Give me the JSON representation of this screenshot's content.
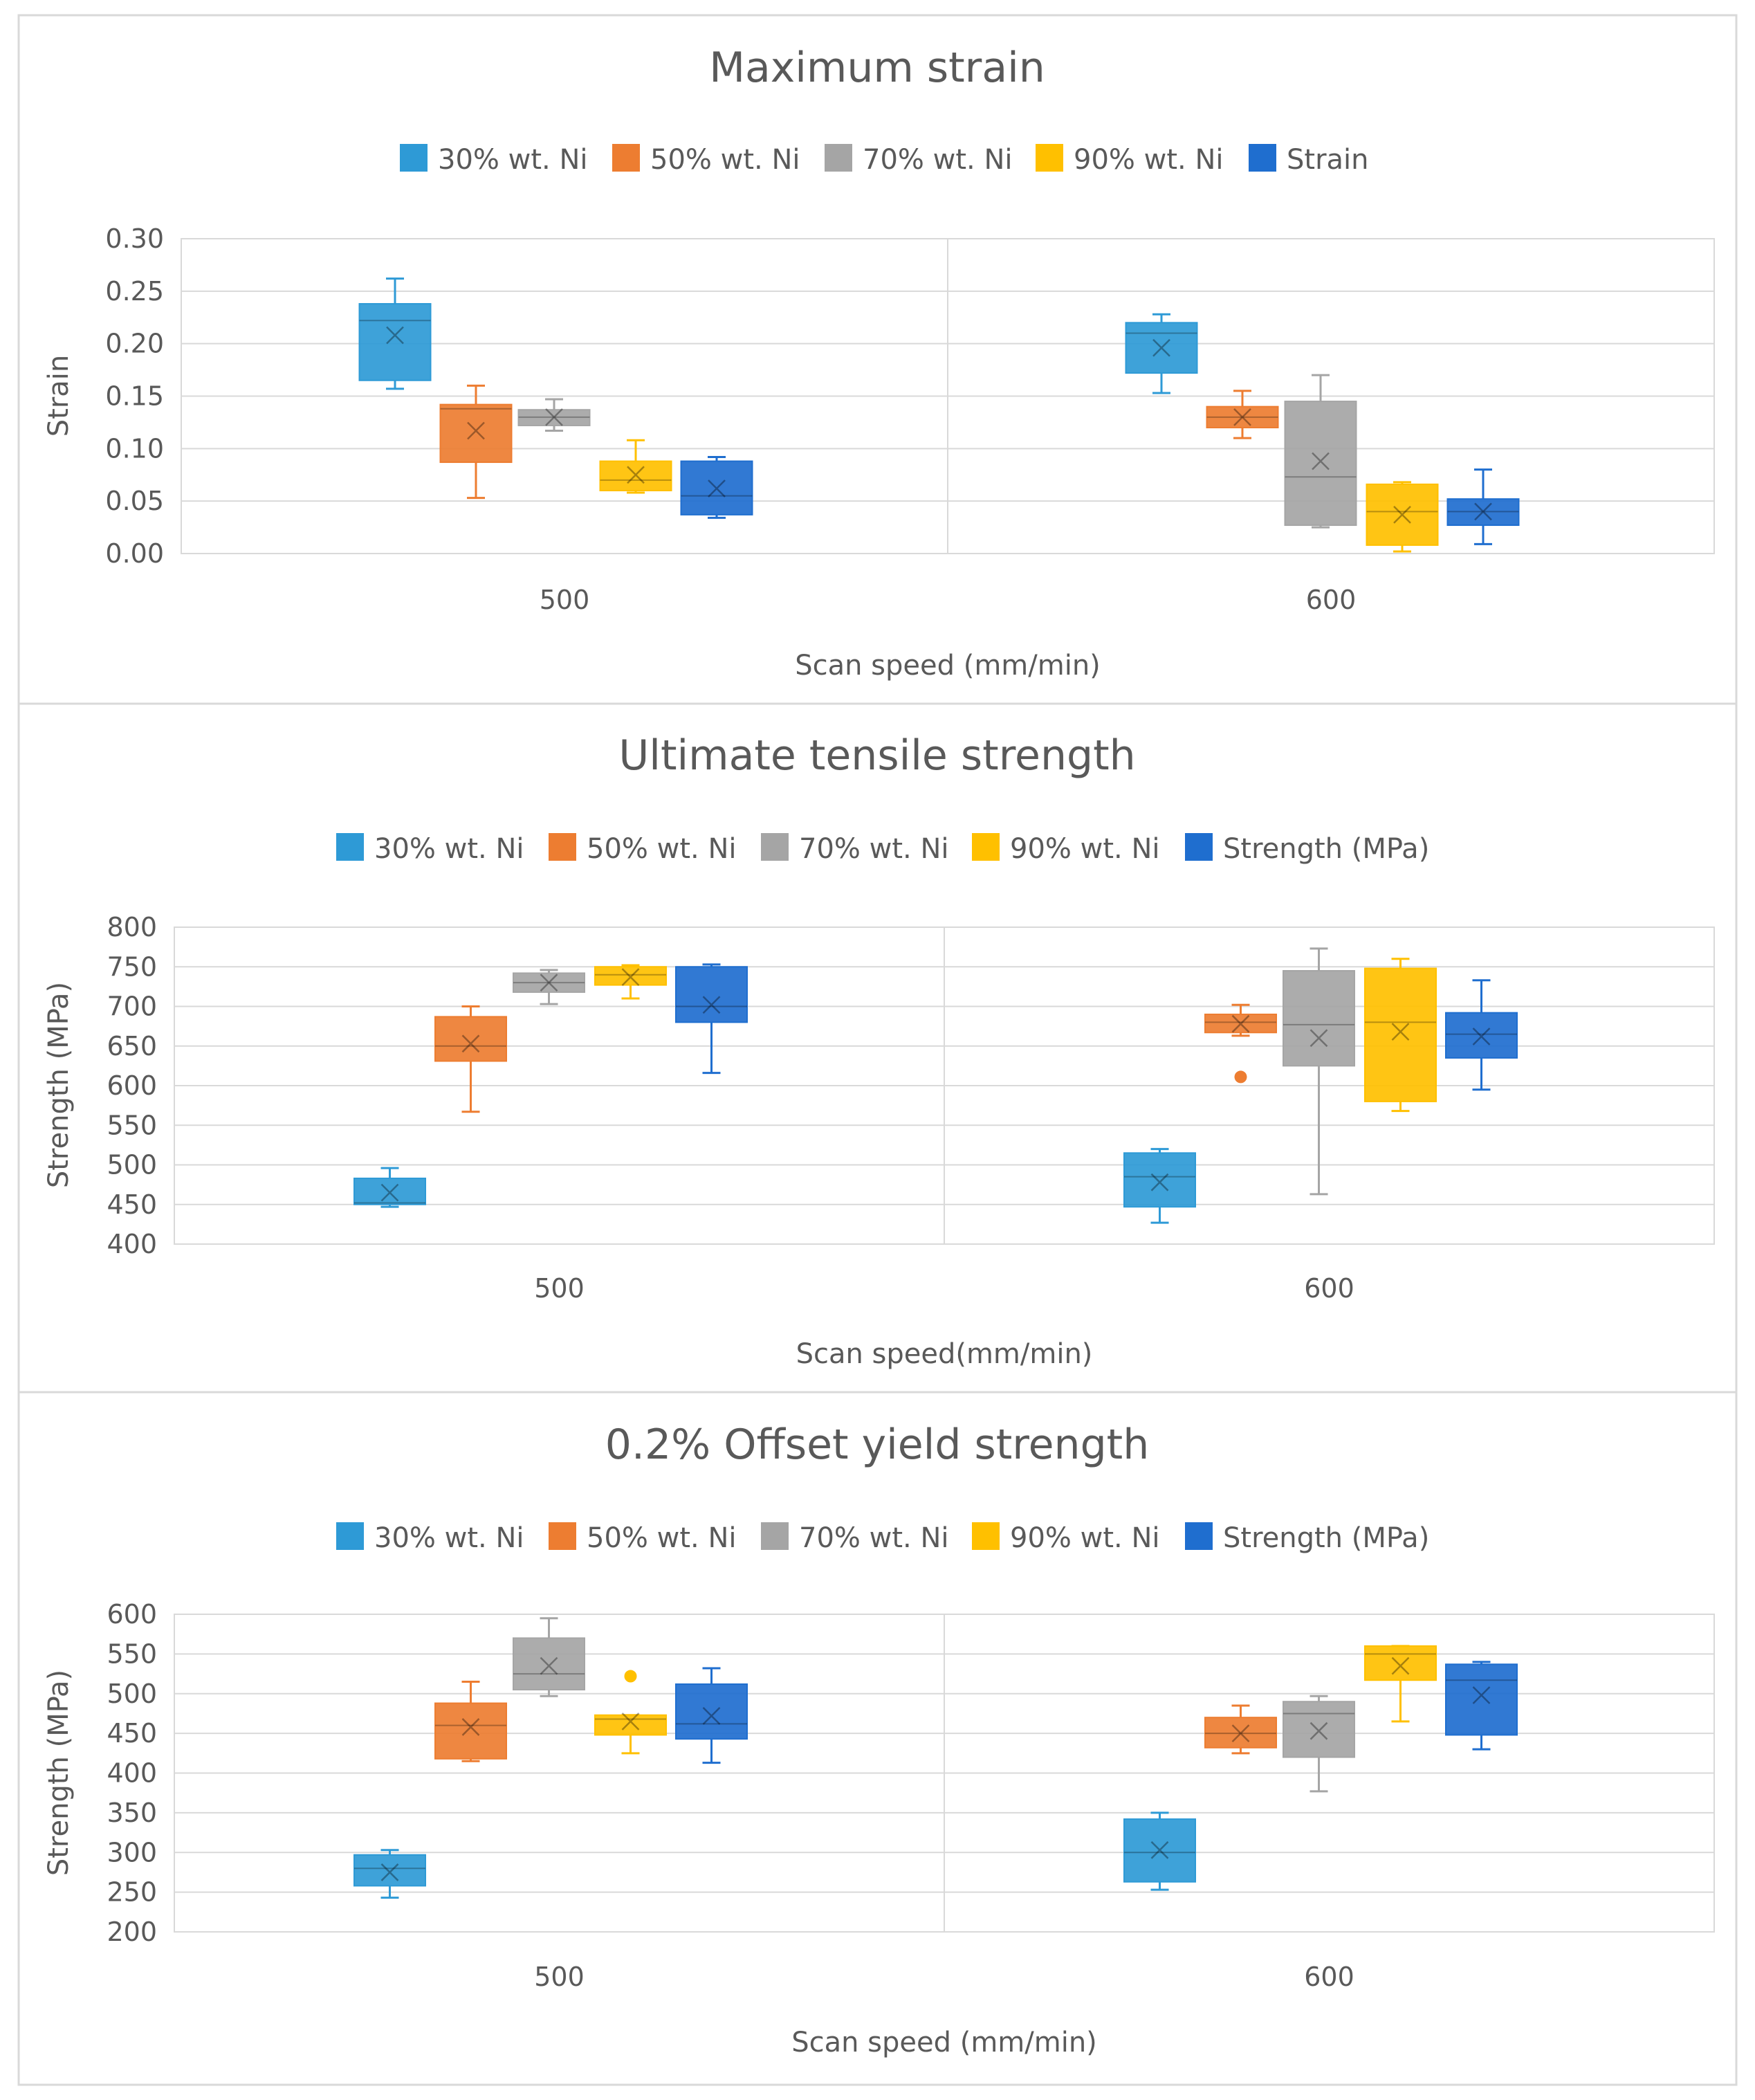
{
  "chart_data": [
    {
      "type": "box",
      "title": "Maximum strain",
      "legend": [
        "30% wt. Ni",
        "50% wt. Ni",
        "70% wt. Ni",
        "90% wt. Ni",
        "Strain"
      ],
      "xlabel": "Scan speed (mm/min)",
      "ylabel": "Strain",
      "ylim": [
        0,
        0.3
      ],
      "yticks": [
        "0.00",
        "0.05",
        "0.10",
        "0.15",
        "0.20",
        "0.25",
        "0.30"
      ],
      "categories": [
        "500",
        "600"
      ],
      "grid": true,
      "legend_position": "top",
      "series": [
        {
          "name": "30% wt. Ni",
          "color": "#2e9ad6",
          "boxes": [
            {
              "category": "500",
              "min": 0.157,
              "q1": 0.165,
              "median": 0.222,
              "q3": 0.238,
              "max": 0.262,
              "mean": 0.208
            },
            {
              "category": "600",
              "min": 0.153,
              "q1": 0.172,
              "median": 0.21,
              "q3": 0.22,
              "max": 0.228,
              "mean": 0.196
            }
          ]
        },
        {
          "name": "50% wt. Ni",
          "color": "#ed7d31",
          "boxes": [
            {
              "category": "500",
              "min": 0.053,
              "q1": 0.087,
              "median": 0.138,
              "q3": 0.142,
              "max": 0.16,
              "mean": 0.117
            },
            {
              "category": "600",
              "min": 0.11,
              "q1": 0.12,
              "median": 0.13,
              "q3": 0.14,
              "max": 0.155,
              "mean": 0.13
            }
          ]
        },
        {
          "name": "70% wt. Ni",
          "color": "#a5a5a5",
          "boxes": [
            {
              "category": "500",
              "min": 0.117,
              "q1": 0.122,
              "median": 0.13,
              "q3": 0.137,
              "max": 0.147,
              "mean": 0.13
            },
            {
              "category": "600",
              "min": 0.025,
              "q1": 0.027,
              "median": 0.073,
              "q3": 0.145,
              "max": 0.17,
              "mean": 0.088
            }
          ]
        },
        {
          "name": "90% wt. Ni",
          "color": "#ffc000",
          "boxes": [
            {
              "category": "500",
              "min": 0.058,
              "q1": 0.06,
              "median": 0.07,
              "q3": 0.088,
              "max": 0.108,
              "mean": 0.075
            },
            {
              "category": "600",
              "min": 0.002,
              "q1": 0.008,
              "median": 0.04,
              "q3": 0.066,
              "max": 0.068,
              "mean": 0.037
            }
          ]
        },
        {
          "name": "Strain",
          "color": "#1f6ecf",
          "boxes": [
            {
              "category": "500",
              "min": 0.034,
              "q1": 0.037,
              "median": 0.055,
              "q3": 0.088,
              "max": 0.092,
              "mean": 0.062
            },
            {
              "category": "600",
              "min": 0.009,
              "q1": 0.027,
              "median": 0.04,
              "q3": 0.052,
              "max": 0.08,
              "mean": 0.04
            }
          ]
        }
      ]
    },
    {
      "type": "box",
      "title": "Ultimate tensile strength",
      "legend": [
        "30% wt. Ni",
        "50% wt. Ni",
        "70% wt. Ni",
        "90% wt. Ni",
        "Strength (MPa)"
      ],
      "xlabel": "Scan speed(mm/min)",
      "ylabel": "Strength (MPa)",
      "ylim": [
        400,
        800
      ],
      "yticks": [
        "400",
        "450",
        "500",
        "550",
        "600",
        "650",
        "700",
        "750",
        "800"
      ],
      "categories": [
        "500",
        "600"
      ],
      "grid": true,
      "legend_position": "top",
      "series": [
        {
          "name": "30% wt. Ni",
          "color": "#2e9ad6",
          "boxes": [
            {
              "category": "500",
              "min": 447,
              "q1": 450,
              "median": 452,
              "q3": 483,
              "max": 496,
              "mean": 465
            },
            {
              "category": "600",
              "min": 427,
              "q1": 447,
              "median": 485,
              "q3": 515,
              "max": 520,
              "mean": 478
            }
          ]
        },
        {
          "name": "50% wt. Ni",
          "color": "#ed7d31",
          "boxes": [
            {
              "category": "500",
              "min": 567,
              "q1": 631,
              "median": 650,
              "q3": 687,
              "max": 700,
              "mean": 653
            },
            {
              "category": "600",
              "min": 663,
              "q1": 667,
              "median": 680,
              "q3": 690,
              "max": 702,
              "mean": 678,
              "outliers": [
                611
              ]
            }
          ]
        },
        {
          "name": "70% wt. Ni",
          "color": "#a5a5a5",
          "boxes": [
            {
              "category": "500",
              "min": 703,
              "q1": 718,
              "median": 730,
              "q3": 742,
              "max": 746,
              "mean": 730
            },
            {
              "category": "600",
              "min": 463,
              "q1": 625,
              "median": 677,
              "q3": 745,
              "max": 773,
              "mean": 660
            }
          ]
        },
        {
          "name": "90% wt. Ni",
          "color": "#ffc000",
          "boxes": [
            {
              "category": "500",
              "min": 710,
              "q1": 727,
              "median": 740,
              "q3": 750,
              "max": 752,
              "mean": 737
            },
            {
              "category": "600",
              "min": 568,
              "q1": 580,
              "median": 680,
              "q3": 748,
              "max": 760,
              "mean": 668
            }
          ]
        },
        {
          "name": "Strength (MPa)",
          "color": "#1f6ecf",
          "boxes": [
            {
              "category": "500",
              "min": 616,
              "q1": 680,
              "median": 700,
              "q3": 750,
              "max": 753,
              "mean": 702
            },
            {
              "category": "600",
              "min": 595,
              "q1": 635,
              "median": 665,
              "q3": 692,
              "max": 733,
              "mean": 662
            }
          ]
        }
      ]
    },
    {
      "type": "box",
      "title": "0.2% Offset yield strength",
      "legend": [
        "30% wt. Ni",
        "50% wt. Ni",
        "70% wt. Ni",
        "90% wt. Ni",
        "Strength (MPa)"
      ],
      "xlabel": "Scan speed (mm/min)",
      "ylabel": "Strength (MPa)",
      "ylim": [
        200,
        600
      ],
      "yticks": [
        "200",
        "250",
        "300",
        "350",
        "400",
        "450",
        "500",
        "550",
        "600"
      ],
      "categories": [
        "500",
        "600"
      ],
      "grid": true,
      "legend_position": "top",
      "series": [
        {
          "name": "30% wt. Ni",
          "color": "#2e9ad6",
          "boxes": [
            {
              "category": "500",
              "min": 243,
              "q1": 258,
              "median": 280,
              "q3": 297,
              "max": 303,
              "mean": 275
            },
            {
              "category": "600",
              "min": 253,
              "q1": 263,
              "median": 300,
              "q3": 342,
              "max": 350,
              "mean": 303
            }
          ]
        },
        {
          "name": "50% wt. Ni",
          "color": "#ed7d31",
          "boxes": [
            {
              "category": "500",
              "min": 415,
              "q1": 418,
              "median": 460,
              "q3": 488,
              "max": 515,
              "mean": 458
            },
            {
              "category": "600",
              "min": 425,
              "q1": 432,
              "median": 450,
              "q3": 470,
              "max": 485,
              "mean": 450
            }
          ]
        },
        {
          "name": "70% wt. Ni",
          "color": "#a5a5a5",
          "boxes": [
            {
              "category": "500",
              "min": 497,
              "q1": 505,
              "median": 525,
              "q3": 570,
              "max": 595,
              "mean": 535
            },
            {
              "category": "600",
              "min": 377,
              "q1": 420,
              "median": 475,
              "q3": 490,
              "max": 497,
              "mean": 453
            }
          ]
        },
        {
          "name": "90% wt. Ni",
          "color": "#ffc000",
          "boxes": [
            {
              "category": "500",
              "min": 425,
              "q1": 448,
              "median": 468,
              "q3": 473,
              "max": 473,
              "mean": 465,
              "outliers": [
                522
              ]
            },
            {
              "category": "600",
              "min": 465,
              "q1": 517,
              "median": 550,
              "q3": 560,
              "max": 560,
              "mean": 535
            }
          ]
        },
        {
          "name": "Strength (MPa)",
          "color": "#1f6ecf",
          "boxes": [
            {
              "category": "500",
              "min": 413,
              "q1": 443,
              "median": 462,
              "q3": 512,
              "max": 532,
              "mean": 472
            },
            {
              "category": "600",
              "min": 430,
              "q1": 448,
              "median": 517,
              "q3": 537,
              "max": 540,
              "mean": 498
            }
          ]
        }
      ]
    }
  ]
}
